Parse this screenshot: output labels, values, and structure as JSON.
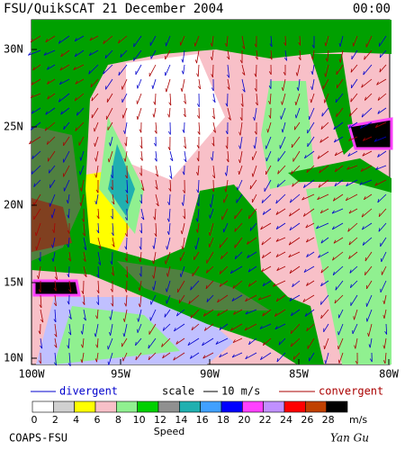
{
  "header": {
    "title": "FSU/QuikSCAT 21 December 2004",
    "time": "00:00"
  },
  "map": {
    "lat_labels": [
      "30N",
      "25N",
      "20N",
      "15N",
      "10N"
    ],
    "lon_labels": [
      "100W",
      "95W",
      "90W",
      "85W",
      "80W"
    ]
  },
  "legend": {
    "divergent": "divergent",
    "scale": "scale",
    "scale_value": "10 m/s",
    "convergent": "convergent"
  },
  "colorbar": {
    "ticks": [
      0,
      2,
      4,
      6,
      8,
      10,
      12,
      14,
      16,
      18,
      20,
      22,
      24,
      26,
      28
    ],
    "colors": [
      "#ffffff",
      "#d0d0d0",
      "#ffff00",
      "#f8c0c8",
      "#90f090",
      "#00d000",
      "#909090",
      "#20b0b0",
      "#40a0ff",
      "#0000ff",
      "#ff40ff",
      "#c090ff",
      "#ff0000",
      "#c04000",
      "#000000"
    ],
    "unit": "m/s",
    "label": "Speed"
  },
  "footer": {
    "credit": "COAPS-FSU",
    "author": "Yan Gu"
  }
}
